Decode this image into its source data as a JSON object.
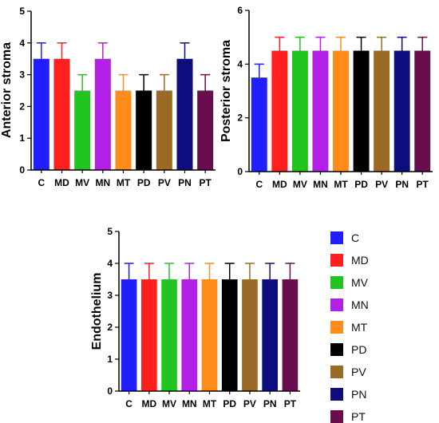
{
  "chart_data": [
    {
      "type": "bar",
      "ylabel": "Anterior stroma",
      "categories": [
        "C",
        "MD",
        "MV",
        "MN",
        "MT",
        "PD",
        "PV",
        "PN",
        "PT"
      ],
      "values": [
        3.5,
        3.5,
        2.5,
        3.5,
        2.5,
        2.5,
        2.5,
        3.5,
        2.5
      ],
      "errors": [
        0.5,
        0.5,
        0.5,
        0.5,
        0.5,
        0.5,
        0.5,
        0.5,
        0.5
      ],
      "ylim": [
        0,
        5
      ],
      "yticks": [
        "0",
        "1",
        "2",
        "3",
        "4",
        "5"
      ],
      "grid": false
    },
    {
      "type": "bar",
      "ylabel": "Posterior stroma",
      "categories": [
        "C",
        "MD",
        "MV",
        "MN",
        "MT",
        "PD",
        "PV",
        "PN",
        "PT"
      ],
      "values": [
        3.5,
        4.5,
        4.5,
        4.5,
        4.5,
        4.5,
        4.5,
        4.5,
        4.5
      ],
      "errors": [
        0.5,
        0.5,
        0.5,
        0.5,
        0.5,
        0.5,
        0.5,
        0.5,
        0.5
      ],
      "ylim": [
        0,
        6
      ],
      "yticks": [
        "0",
        "2",
        "4",
        "6"
      ],
      "grid": false
    },
    {
      "type": "bar",
      "ylabel": "Endothelium",
      "categories": [
        "C",
        "MD",
        "MV",
        "MN",
        "MT",
        "PD",
        "PV",
        "PN",
        "PT"
      ],
      "values": [
        3.5,
        3.5,
        3.5,
        3.5,
        3.5,
        3.5,
        3.5,
        3.5,
        3.5
      ],
      "errors": [
        0.5,
        0.5,
        0.5,
        0.5,
        0.5,
        0.5,
        0.5,
        0.5,
        0.5
      ],
      "ylim": [
        0,
        5
      ],
      "yticks": [
        "0",
        "1",
        "2",
        "3",
        "4",
        "5"
      ],
      "grid": false
    }
  ],
  "colors": [
    "#1f1fff",
    "#ff1f1f",
    "#22c422",
    "#b21fe6",
    "#ff8c1a",
    "#000000",
    "#9b6a26",
    "#0d0d80",
    "#6a0d4f"
  ],
  "legend": {
    "position": "right-of-bottom-chart",
    "items": [
      {
        "label": "C"
      },
      {
        "label": "MD"
      },
      {
        "label": "MV"
      },
      {
        "label": "MN"
      },
      {
        "label": "MT"
      },
      {
        "label": "PD"
      },
      {
        "label": "PV"
      },
      {
        "label": "PN"
      },
      {
        "label": "PT"
      }
    ]
  }
}
